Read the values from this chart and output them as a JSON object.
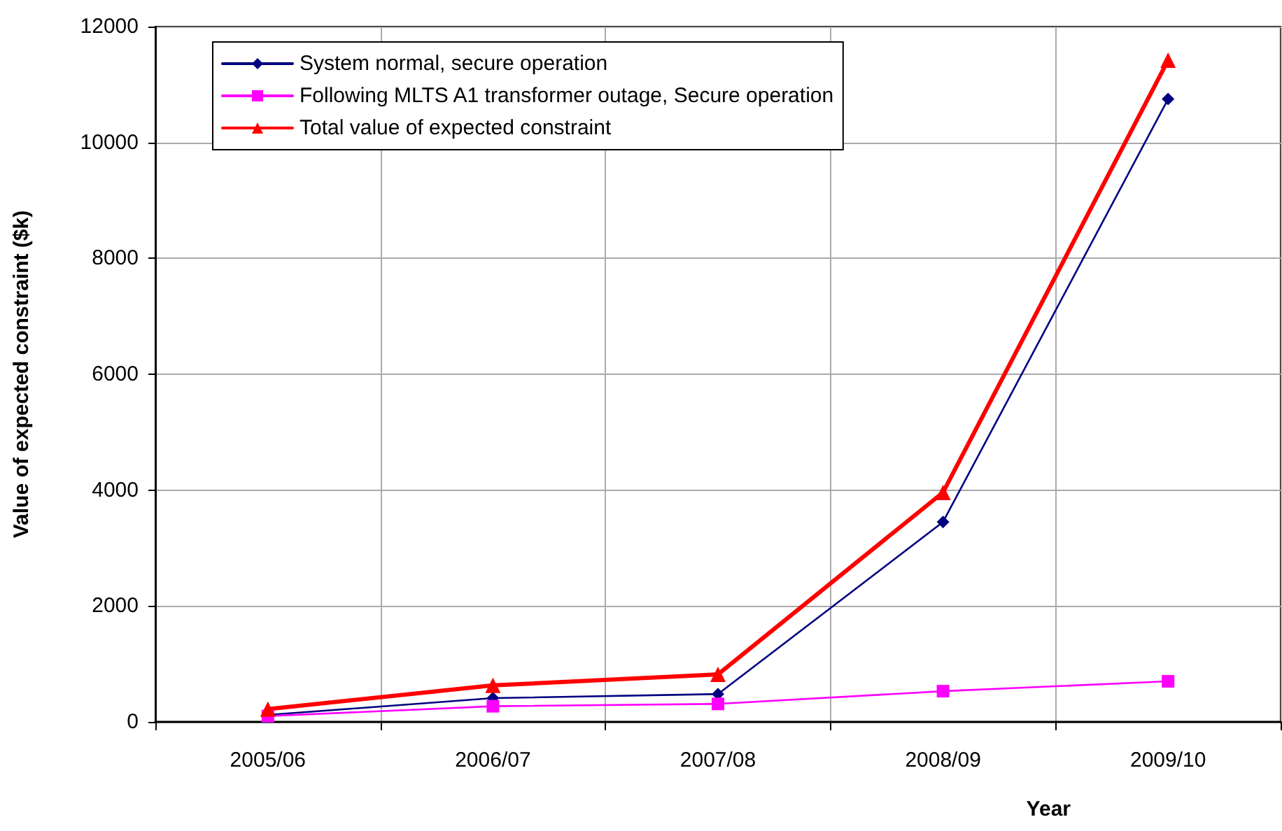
{
  "chart_data": {
    "type": "line",
    "xlabel": "Year",
    "ylabel": "Value of expected constraint ($k)",
    "categories": [
      "2005/06",
      "2006/07",
      "2007/08",
      "2008/09",
      "2009/10"
    ],
    "series": [
      {
        "name": "System normal, secure operation",
        "color": "#000080",
        "marker": "diamond",
        "values": [
          120,
          410,
          480,
          3450,
          10750
        ]
      },
      {
        "name": "Following MLTS A1 transformer outage, Secure operation",
        "color": "#ff00ff",
        "marker": "square",
        "values": [
          100,
          270,
          310,
          530,
          700
        ]
      },
      {
        "name": "Total value of expected constraint",
        "color": "#ff0000",
        "marker": "triangle",
        "values": [
          220,
          630,
          820,
          3960,
          11420
        ]
      }
    ],
    "ylim": [
      0,
      12000
    ],
    "yticks": [
      0,
      2000,
      4000,
      6000,
      8000,
      10000,
      12000
    ],
    "grid": true,
    "legend": "top left"
  }
}
